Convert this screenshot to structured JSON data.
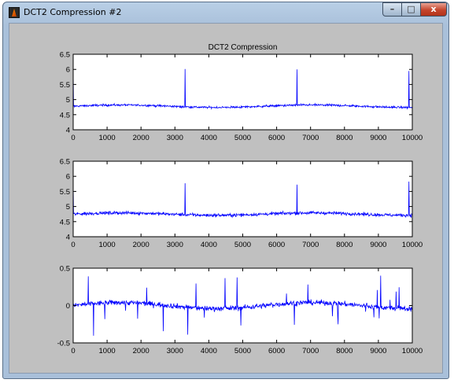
{
  "window": {
    "title": "DCT2 Compression #2",
    "buttons": {
      "minimize": "–",
      "maximize": "□",
      "close": "x"
    }
  },
  "figure": {
    "background": "#c0c0c0",
    "line_color": "#0000ff"
  },
  "chart_data": [
    {
      "type": "line",
      "title": "DCT2 Compression",
      "xlim": [
        0,
        10000
      ],
      "ylim": [
        4,
        6.5
      ],
      "xticks": [
        "0",
        "1000",
        "2000",
        "3000",
        "4000",
        "5000",
        "6000",
        "7000",
        "8000",
        "9000",
        "10000"
      ],
      "yticks": [
        "4",
        "4.5",
        "5",
        "5.5",
        "6",
        "6.5"
      ],
      "series": [
        {
          "baseline": 4.78,
          "spike_peak": 6.05,
          "spike_period": 330,
          "noise": 0.06
        }
      ]
    },
    {
      "type": "line",
      "title": "",
      "xlim": [
        0,
        10000
      ],
      "ylim": [
        4,
        6.5
      ],
      "xticks": [
        "0",
        "1000",
        "2000",
        "3000",
        "4000",
        "5000",
        "6000",
        "7000",
        "8000",
        "9000",
        "10000"
      ],
      "yticks": [
        "4",
        "4.5",
        "5",
        "5.5",
        "6",
        "6.5"
      ],
      "series": [
        {
          "baseline": 4.75,
          "spike_peak": 5.85,
          "spike_period": 330,
          "noise": 0.09
        }
      ]
    },
    {
      "type": "line",
      "title": "",
      "xlim": [
        0,
        10000
      ],
      "ylim": [
        -0.5,
        0.5
      ],
      "xticks": [
        "0",
        "1000",
        "2000",
        "3000",
        "4000",
        "5000",
        "6000",
        "7000",
        "8000",
        "9000",
        "10000"
      ],
      "yticks": [
        "-0.5",
        "0",
        "0.5"
      ],
      "series": [
        {
          "baseline": 0.0,
          "noise": 0.06
        }
      ]
    }
  ]
}
